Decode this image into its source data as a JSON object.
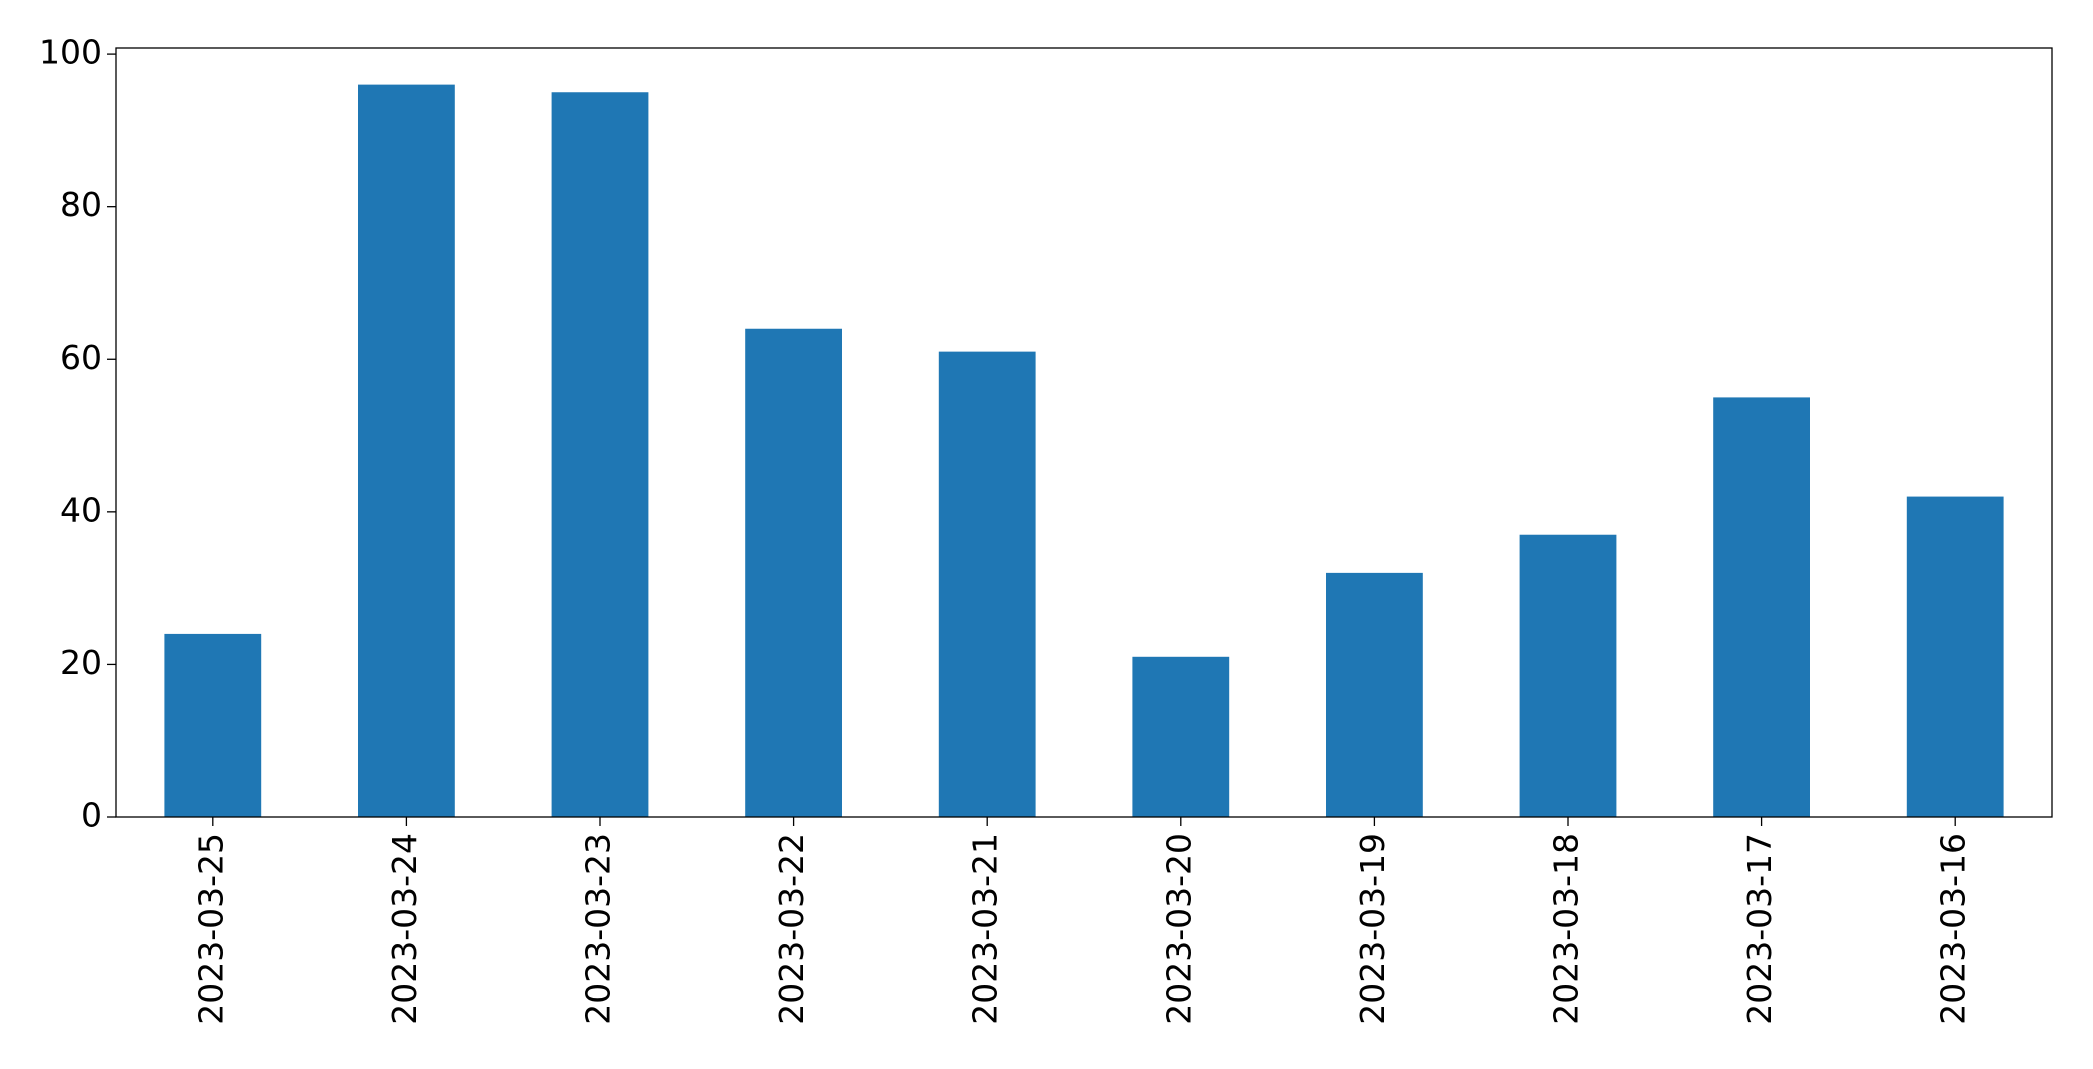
{
  "chart_data": {
    "type": "bar",
    "categories": [
      "2023-03-25",
      "2023-03-24",
      "2023-03-23",
      "2023-03-22",
      "2023-03-21",
      "2023-03-20",
      "2023-03-19",
      "2023-03-18",
      "2023-03-17",
      "2023-03-16"
    ],
    "values": [
      24,
      96,
      95,
      64,
      61,
      21,
      32,
      37,
      55,
      42
    ],
    "color": "#1f77b4",
    "ylim": [
      0,
      100.8
    ],
    "yticks": [
      0,
      20,
      40,
      60,
      80,
      100
    ],
    "grid": false
  }
}
